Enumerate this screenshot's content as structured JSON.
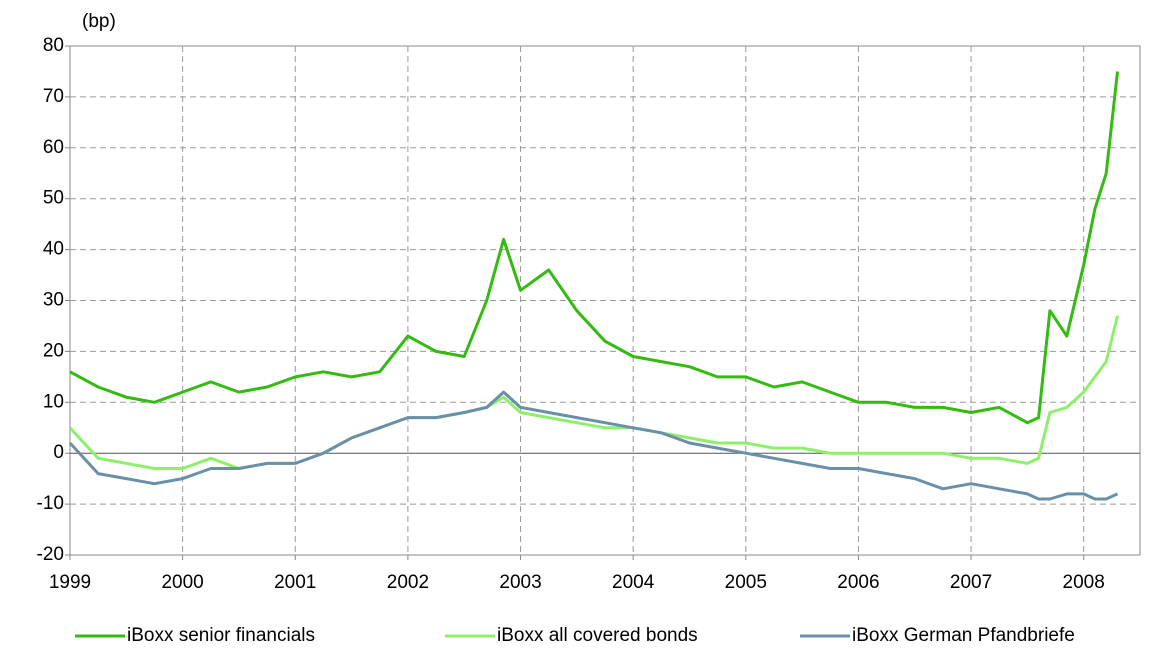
{
  "chart_data": {
    "type": "line",
    "y_label": "(bp)",
    "x": [
      1999,
      1999.25,
      1999.5,
      1999.75,
      2000,
      2000.25,
      2000.5,
      2000.75,
      2001,
      2001.25,
      2001.5,
      2001.75,
      2002,
      2002.25,
      2002.5,
      2002.7,
      2002.85,
      2003,
      2003.25,
      2003.5,
      2003.75,
      2004,
      2004.25,
      2004.5,
      2004.75,
      2005,
      2005.25,
      2005.5,
      2005.75,
      2006,
      2006.25,
      2006.5,
      2006.75,
      2007,
      2007.25,
      2007.5,
      2007.6,
      2007.7,
      2007.85,
      2008,
      2008.1,
      2008.2,
      2008.3
    ],
    "series": [
      {
        "name": "iBoxx senior financials",
        "color": "#33bb11",
        "values": [
          16,
          13,
          11,
          10,
          12,
          14,
          12,
          13,
          15,
          16,
          15,
          16,
          23,
          20,
          19,
          30,
          42,
          32,
          36,
          28,
          22,
          19,
          18,
          17,
          15,
          15,
          13,
          14,
          12,
          10,
          10,
          9,
          9,
          8,
          9,
          6,
          7,
          28,
          23,
          37,
          48,
          55,
          75
        ]
      },
      {
        "name": "iBoxx all covered bonds",
        "color": "#8ef06a",
        "values": [
          5,
          -1,
          -2,
          -3,
          -3,
          -1,
          -3,
          -2,
          -2,
          0,
          3,
          5,
          7,
          7,
          8,
          9,
          11,
          8,
          7,
          6,
          5,
          5,
          4,
          3,
          2,
          2,
          1,
          1,
          0,
          0,
          0,
          0,
          0,
          -1,
          -1,
          -2,
          -1,
          8,
          9,
          12,
          15,
          18,
          27
        ]
      },
      {
        "name": "iBoxx German Pfandbriefe",
        "color": "#6a8fab",
        "values": [
          2,
          -4,
          -5,
          -6,
          -5,
          -3,
          -3,
          -2,
          -2,
          0,
          3,
          5,
          7,
          7,
          8,
          9,
          12,
          9,
          8,
          7,
          6,
          5,
          4,
          2,
          1,
          0,
          -1,
          -2,
          -3,
          -3,
          -4,
          -5,
          -7,
          -6,
          -7,
          -8,
          -9,
          -9,
          -8,
          -8,
          -9,
          -9,
          -8
        ]
      }
    ],
    "xlim": [
      1999,
      2008.5
    ],
    "xticks": [
      1999,
      2000,
      2001,
      2002,
      2003,
      2004,
      2005,
      2006,
      2007,
      2008
    ],
    "ylim": [
      -20,
      80
    ],
    "yticks": [
      -20,
      -10,
      0,
      10,
      20,
      30,
      40,
      50,
      60,
      70,
      80
    ],
    "grid": true,
    "legend": "bottom"
  }
}
